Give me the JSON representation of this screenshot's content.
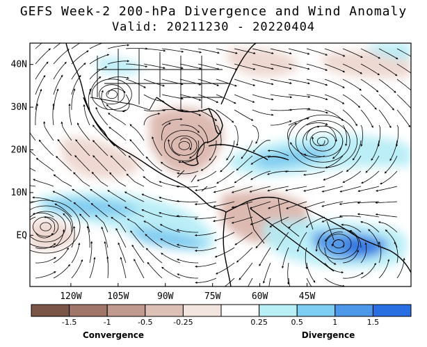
{
  "title": {
    "line1": "GEFS Week-2 200-hPa Divergence and Wind Anomaly",
    "line2": "Valid: 20211230 - 20220404"
  },
  "map": {
    "lat_range": [
      -12,
      45
    ],
    "lon_range": [
      -133,
      -12
    ],
    "lat_ticks": [
      {
        "value": 40,
        "label": "40N"
      },
      {
        "value": 30,
        "label": "30N"
      },
      {
        "value": 20,
        "label": "20N"
      },
      {
        "value": 10,
        "label": "10N"
      },
      {
        "value": 0,
        "label": "EQ"
      }
    ],
    "lon_ticks": [
      {
        "value": -120,
        "label": "120W"
      },
      {
        "value": -105,
        "label": "105W"
      },
      {
        "value": -90,
        "label": "90W"
      },
      {
        "value": -75,
        "label": "75W"
      },
      {
        "value": -60,
        "label": "60W"
      },
      {
        "value": -45,
        "label": "45W"
      }
    ],
    "circulations": [
      {
        "name": "anticyclone-mid-atlantic",
        "lon": -40,
        "lat": 22,
        "sense": "cw"
      },
      {
        "name": "anticyclone-east-pacific",
        "lon": -128,
        "lat": 2,
        "sense": "ccw"
      },
      {
        "name": "anticyclone-south-atlantic",
        "lon": -35,
        "lat": -2,
        "sense": "ccw"
      },
      {
        "name": "vortex-southwest-us",
        "lon": -107,
        "lat": 33,
        "sense": "cw"
      },
      {
        "name": "vortex-gulf",
        "lon": -84,
        "lat": 21,
        "sense": "cw"
      }
    ]
  },
  "colorbar": {
    "bins": [
      {
        "color": "#7b5547"
      },
      {
        "color": "#a0766a"
      },
      {
        "color": "#c09a8e"
      },
      {
        "color": "#dcc0b6"
      },
      {
        "color": "#f2e4de"
      },
      {
        "color": "#ffffff"
      },
      {
        "color": "#b8f0f6"
      },
      {
        "color": "#7ecdf2"
      },
      {
        "color": "#4e98ea"
      },
      {
        "color": "#2a6fe2"
      }
    ],
    "tick_labels": [
      "-1.5",
      "-1",
      "-0.5",
      "-0.25",
      "0.25",
      "0.5",
      "1",
      "1.5"
    ],
    "left_label": "Convergence",
    "right_label": "Divergence"
  },
  "anomaly_colors": {
    "divergence_light": "#b4ecf6",
    "divergence_mid": "#7ac8f0",
    "divergence_strong": "#4a90e6",
    "divergence_max": "#2d6fdf",
    "convergence_light": "#ecd4cc",
    "convergence_mid": "#d9b3a8"
  }
}
